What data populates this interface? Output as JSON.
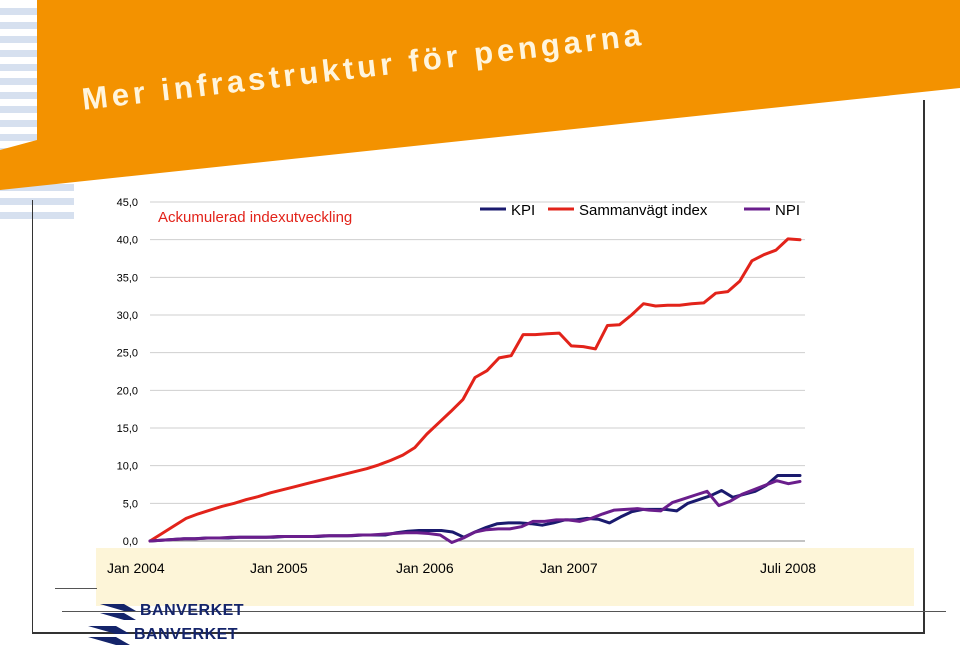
{
  "slide": {
    "title": "Mer infrastruktur för pengarna",
    "brand": "BANVERKET",
    "colors": {
      "orange": "#f39200",
      "navy": "#14246a"
    }
  },
  "chart_data": {
    "type": "line",
    "title": "Ackumulerad indexutveckling",
    "ylim": [
      0,
      45
    ],
    "yticks": [
      "0,0",
      "5,0",
      "10,0",
      "15,0",
      "20,0",
      "25,0",
      "30,0",
      "35,0",
      "40,0",
      "45,0"
    ],
    "xticks": [
      {
        "label": "Jan 2004",
        "month": 0
      },
      {
        "label": "Jan 2005",
        "month": 12
      },
      {
        "label": "Jan 2006",
        "month": 24
      },
      {
        "label": "Jan 2007",
        "month": 36
      },
      {
        "label": "Juli 2008",
        "month": 54
      }
    ],
    "legend_position": "top-right",
    "series": [
      {
        "name": "KPI",
        "color": "#1a1a6e",
        "values": [
          0,
          0.1,
          0.2,
          0.3,
          0.3,
          0.4,
          0.4,
          0.4,
          0.5,
          0.5,
          0.5,
          0.5,
          0.6,
          0.6,
          0.6,
          0.6,
          0.7,
          0.7,
          0.7,
          0.8,
          0.8,
          0.8,
          1.1,
          1.3,
          1.4,
          1.4,
          1.4,
          1.2,
          0.5,
          1.2,
          1.8,
          2.3,
          2.4,
          2.4,
          2.3,
          2.1,
          2.4,
          2.8,
          2.8,
          3.0,
          2.9,
          2.4,
          3.2,
          3.9,
          4.2,
          4.2,
          4.2,
          4.0,
          5.0,
          5.5,
          6.0,
          6.7,
          5.8,
          6.2,
          6.6,
          7.4,
          8.7,
          8.7,
          8.7
        ]
      },
      {
        "name": "Sammanvägt index",
        "color": "#e2231a",
        "values": [
          0,
          1.0,
          2.0,
          3.0,
          3.6,
          4.1,
          4.6,
          5.0,
          5.5,
          5.9,
          6.4,
          6.8,
          7.2,
          7.6,
          8.0,
          8.4,
          8.8,
          9.2,
          9.6,
          10.1,
          10.7,
          11.4,
          12.4,
          14.2,
          15.7,
          17.2,
          18.8,
          21.7,
          22.6,
          24.3,
          24.6,
          27.4,
          27.4,
          27.5,
          27.6,
          25.9,
          25.8,
          25.5,
          28.6,
          28.7,
          30.0,
          31.5,
          31.2,
          31.3,
          31.3,
          31.5,
          31.6,
          32.9,
          33.1,
          34.5,
          37.2,
          38.0,
          38.6,
          40.1,
          40.0
        ]
      },
      {
        "name": "NPI",
        "color": "#6a1e8c",
        "values": [
          0,
          0.1,
          0.2,
          0.3,
          0.3,
          0.4,
          0.4,
          0.5,
          0.5,
          0.5,
          0.5,
          0.6,
          0.6,
          0.6,
          0.6,
          0.7,
          0.7,
          0.7,
          0.8,
          0.8,
          0.9,
          1.0,
          1.1,
          1.1,
          1.0,
          0.8,
          -0.2,
          0.4,
          1.2,
          1.5,
          1.6,
          1.6,
          1.9,
          2.6,
          2.6,
          2.8,
          2.8,
          2.6,
          3.0,
          3.6,
          4.1,
          4.2,
          4.3,
          4.1,
          4.0,
          5.1,
          5.6,
          6.1,
          6.6,
          4.7,
          5.3,
          6.2,
          6.8,
          7.4,
          8.0,
          7.6,
          7.9
        ]
      }
    ]
  }
}
